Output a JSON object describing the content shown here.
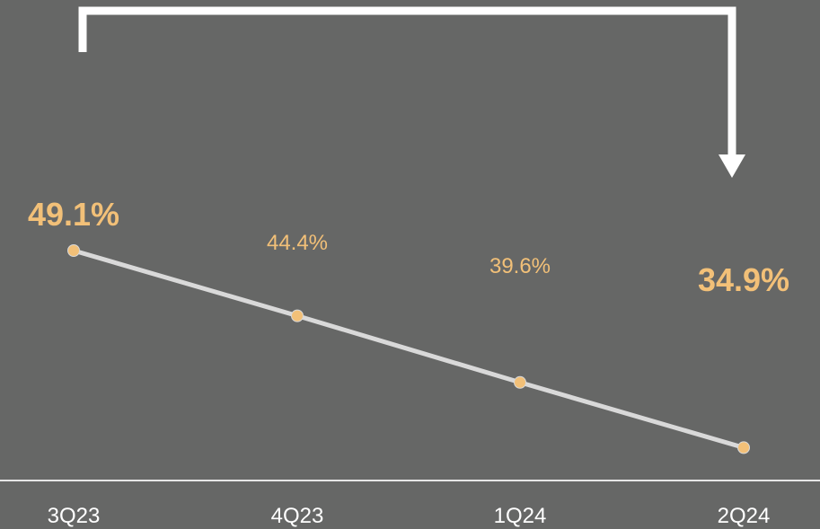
{
  "chart_data": {
    "type": "line",
    "categories": [
      "3Q23",
      "4Q23",
      "1Q24",
      "2Q24"
    ],
    "series": [
      {
        "values": [
          49.1,
          44.4,
          39.6,
          34.9
        ]
      }
    ],
    "data_labels": [
      "49.1%",
      "44.4%",
      "39.6%",
      "34.9%"
    ],
    "emphasized_labels": [
      true,
      false,
      false,
      true
    ],
    "ylim": [
      0,
      100
    ],
    "grid": false,
    "legend": "none",
    "annotation": "bracket-arrow from 3Q23 to 2Q24",
    "colors": {
      "background": "#666766",
      "line": "#d9d9d9",
      "marker": "#f2c078",
      "label": "#f2c078",
      "axis": "#e6e6e6",
      "tick_text": "#ffffff",
      "arrow": "#ffffff"
    }
  }
}
